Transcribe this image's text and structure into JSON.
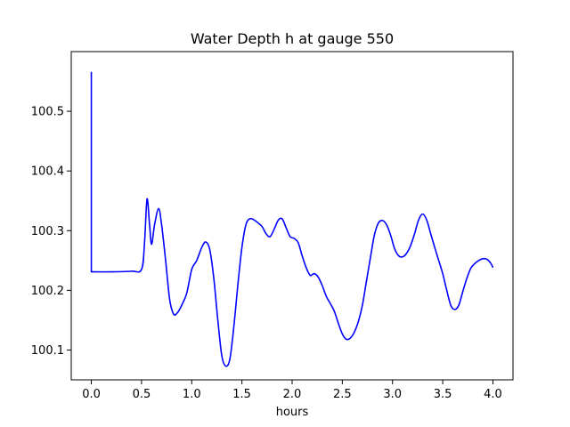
{
  "chart_data": {
    "type": "line",
    "title": "Water Depth h at gauge 550",
    "xlabel": "hours",
    "ylabel": "",
    "xlim": [
      -0.2,
      4.2
    ],
    "ylim": [
      100.05,
      100.6
    ],
    "grid": false,
    "legend": "none",
    "xticks": [
      {
        "value": 0.0,
        "label": "0.0"
      },
      {
        "value": 0.5,
        "label": "0.5"
      },
      {
        "value": 1.0,
        "label": "1.0"
      },
      {
        "value": 1.5,
        "label": "1.5"
      },
      {
        "value": 2.0,
        "label": "2.0"
      },
      {
        "value": 2.5,
        "label": "2.5"
      },
      {
        "value": 3.0,
        "label": "3.0"
      },
      {
        "value": 3.5,
        "label": "3.5"
      },
      {
        "value": 4.0,
        "label": "4.0"
      }
    ],
    "yticks": [
      {
        "value": 100.1,
        "label": "100.1"
      },
      {
        "value": 100.2,
        "label": "100.2"
      },
      {
        "value": 100.3,
        "label": "100.3"
      },
      {
        "value": 100.4,
        "label": "100.4"
      },
      {
        "value": 100.5,
        "label": "100.5"
      }
    ],
    "series": [
      {
        "color": "#0000ff",
        "x": [
          0.0,
          0.0,
          0.0,
          0.2,
          0.4,
          0.5,
          0.53,
          0.555,
          0.58,
          0.6,
          0.63,
          0.67,
          0.7,
          0.74,
          0.78,
          0.82,
          0.86,
          0.9,
          0.95,
          1.0,
          1.05,
          1.1,
          1.14,
          1.18,
          1.22,
          1.26,
          1.3,
          1.34,
          1.38,
          1.42,
          1.46,
          1.5,
          1.54,
          1.58,
          1.62,
          1.66,
          1.7,
          1.74,
          1.78,
          1.82,
          1.86,
          1.9,
          1.94,
          1.98,
          2.02,
          2.06,
          2.1,
          2.14,
          2.18,
          2.22,
          2.26,
          2.3,
          2.34,
          2.38,
          2.42,
          2.46,
          2.5,
          2.54,
          2.58,
          2.62,
          2.66,
          2.7,
          2.74,
          2.78,
          2.82,
          2.86,
          2.9,
          2.94,
          2.98,
          3.02,
          3.06,
          3.1,
          3.14,
          3.18,
          3.22,
          3.26,
          3.3,
          3.34,
          3.38,
          3.42,
          3.46,
          3.5,
          3.54,
          3.58,
          3.62,
          3.66,
          3.7,
          3.74,
          3.78,
          3.82,
          3.86,
          3.9,
          3.94,
          3.98,
          4.0
        ],
        "values": [
          100.566,
          100.231,
          100.231,
          100.231,
          100.232,
          100.235,
          100.28,
          100.353,
          100.31,
          100.277,
          100.31,
          100.337,
          100.31,
          100.25,
          100.185,
          100.16,
          100.163,
          100.175,
          100.195,
          100.235,
          100.25,
          100.272,
          100.281,
          100.268,
          100.22,
          100.15,
          100.09,
          100.073,
          100.085,
          100.14,
          100.21,
          100.272,
          100.31,
          100.32,
          100.318,
          100.313,
          100.307,
          100.295,
          100.29,
          100.302,
          100.317,
          100.32,
          100.305,
          100.29,
          100.287,
          100.28,
          100.258,
          100.238,
          100.225,
          100.228,
          100.222,
          100.208,
          100.19,
          100.178,
          100.165,
          100.145,
          100.127,
          100.118,
          100.12,
          100.13,
          100.148,
          100.175,
          100.215,
          100.255,
          100.293,
          100.313,
          100.317,
          100.31,
          100.293,
          100.27,
          100.258,
          100.256,
          100.262,
          100.275,
          100.295,
          100.318,
          100.328,
          100.318,
          100.295,
          100.272,
          100.25,
          100.228,
          100.2,
          100.175,
          100.168,
          100.175,
          100.198,
          100.22,
          100.237,
          100.245,
          100.25,
          100.253,
          100.252,
          100.245,
          100.238
        ]
      }
    ]
  }
}
